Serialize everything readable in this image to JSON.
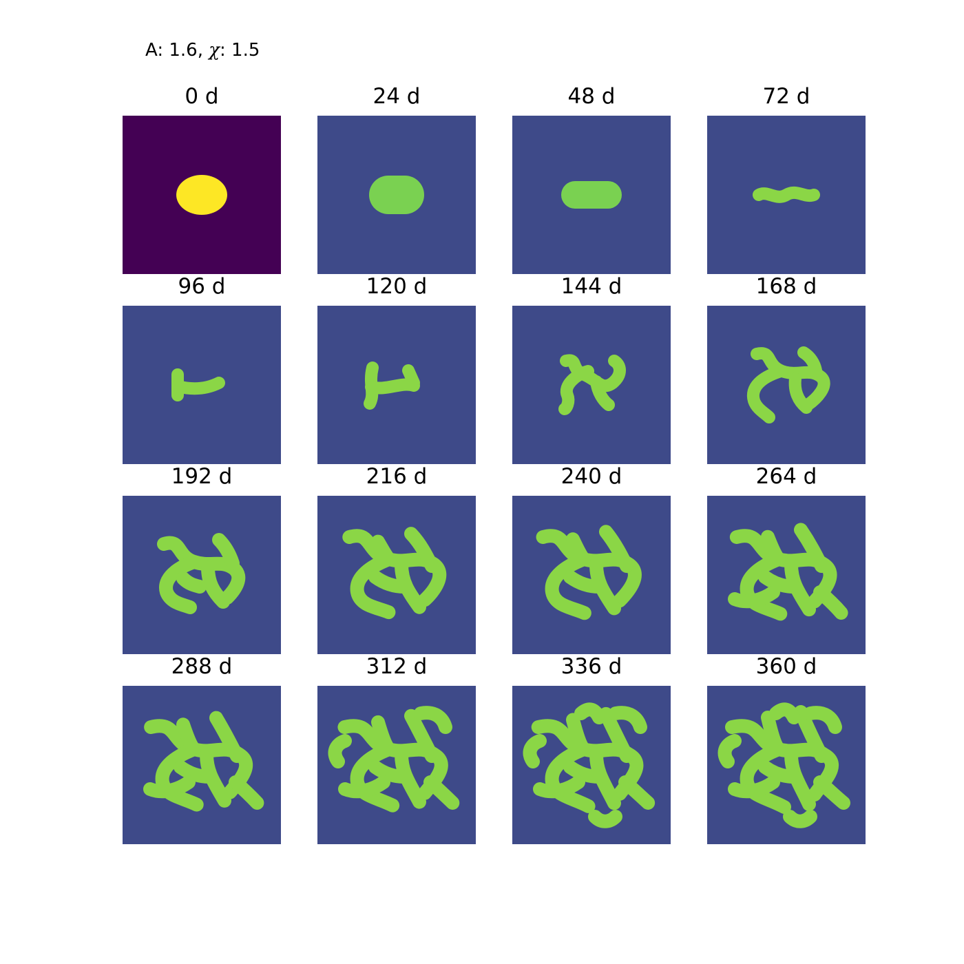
{
  "figure": {
    "suptitle_prefix": "A: 1.6, ",
    "suptitle_chi": "χ",
    "suptitle_suffix": ": 1.5",
    "colors": {
      "background": "#3e4a89",
      "initial_background": "#440154",
      "initial_blob": "#fde725",
      "pattern": "#8bd646",
      "pattern_core": "#7ad151"
    },
    "panels": [
      {
        "label": "0 d",
        "stage": 0
      },
      {
        "label": "24 d",
        "stage": 1
      },
      {
        "label": "48 d",
        "stage": 2
      },
      {
        "label": "72 d",
        "stage": 3
      },
      {
        "label": "96 d",
        "stage": 4
      },
      {
        "label": "120 d",
        "stage": 5
      },
      {
        "label": "144 d",
        "stage": 6
      },
      {
        "label": "168 d",
        "stage": 7
      },
      {
        "label": "192 d",
        "stage": 8
      },
      {
        "label": "216 d",
        "stage": 9
      },
      {
        "label": "240 d",
        "stage": 10
      },
      {
        "label": "264 d",
        "stage": 11
      },
      {
        "label": "288 d",
        "stage": 12
      },
      {
        "label": "312 d",
        "stage": 13
      },
      {
        "label": "336 d",
        "stage": 14
      },
      {
        "label": "360 d",
        "stage": 15
      }
    ]
  }
}
